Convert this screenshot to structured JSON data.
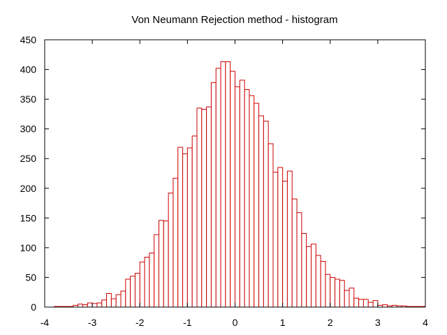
{
  "chart_data": {
    "type": "bar",
    "title": "Von Neumann Rejection method - histogram",
    "xlabel": "",
    "ylabel": "",
    "xlim": [
      -4,
      4
    ],
    "ylim": [
      0,
      450
    ],
    "x_ticks": [
      -4,
      -3,
      -2,
      -1,
      0,
      1,
      2,
      3,
      4
    ],
    "y_ticks": [
      0,
      50,
      100,
      150,
      200,
      250,
      300,
      350,
      400,
      450
    ],
    "bin_start": -3.8,
    "bin_width": 0.1,
    "values": [
      1,
      1,
      1,
      1,
      3,
      5,
      4,
      7,
      6,
      7,
      12,
      23,
      14,
      21,
      27,
      47,
      52,
      57,
      76,
      84,
      91,
      122,
      146,
      145,
      192,
      217,
      269,
      258,
      268,
      288,
      335,
      333,
      337,
      378,
      402,
      413,
      413,
      397,
      371,
      382,
      366,
      356,
      343,
      322,
      313,
      275,
      227,
      235,
      212,
      229,
      182,
      159,
      124,
      102,
      106,
      87,
      77,
      55,
      50,
      47,
      45,
      28,
      32,
      15,
      13,
      13,
      8,
      11,
      3,
      4,
      2,
      3,
      2,
      2,
      1,
      1,
      1,
      1
    ],
    "bar_edge_color": "#cc0000",
    "bar_fill_color": "#ffffff",
    "grid": false,
    "legend": "none"
  }
}
